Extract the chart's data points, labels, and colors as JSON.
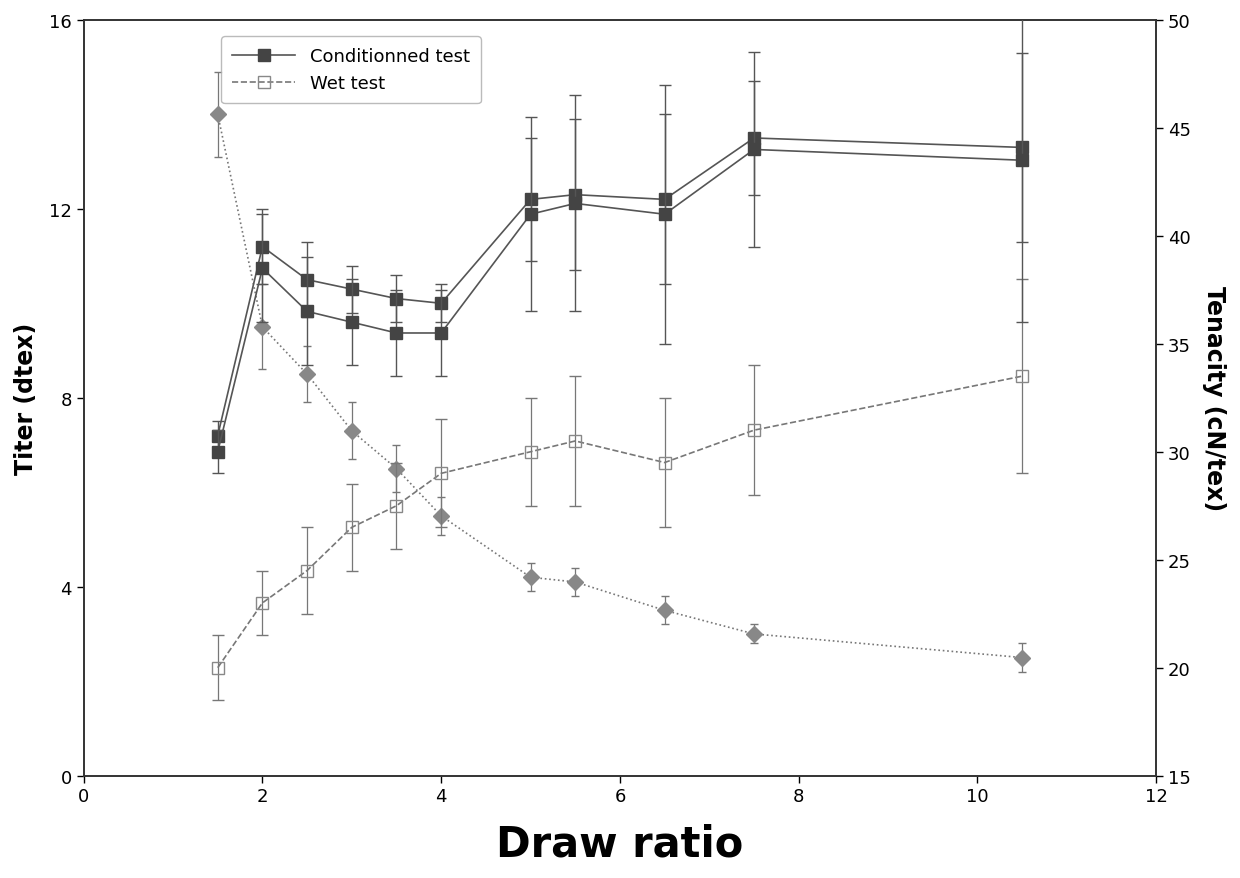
{
  "xlabel": "Draw ratio",
  "ylabel_left": "Titer (dtex)",
  "ylabel_right": "Tenacity (cN/tex)",
  "xlim": [
    0,
    12
  ],
  "ylim_left": [
    0,
    16
  ],
  "ylim_right": [
    15,
    50
  ],
  "xticks": [
    0,
    2,
    4,
    6,
    8,
    10,
    12
  ],
  "yticks_left": [
    0,
    4,
    8,
    12,
    16
  ],
  "yticks_right": [
    15,
    20,
    25,
    30,
    35,
    40,
    45,
    50
  ],
  "x": [
    1.5,
    2.0,
    2.5,
    3.0,
    3.5,
    4.0,
    5.0,
    5.5,
    6.5,
    7.5,
    10.5
  ],
  "cond_titer_y": [
    7.2,
    11.2,
    10.5,
    10.3,
    10.1,
    10.0,
    12.2,
    12.3,
    12.2,
    13.5,
    13.3
  ],
  "cond_titer_yerr": [
    0.3,
    0.8,
    0.8,
    0.5,
    0.5,
    0.4,
    1.3,
    1.6,
    1.8,
    1.2,
    2.0
  ],
  "wet_titer_y": [
    14.0,
    9.5,
    8.5,
    7.3,
    6.5,
    5.5,
    4.2,
    4.1,
    3.5,
    3.0,
    2.5
  ],
  "wet_titer_yerr": [
    0.9,
    0.9,
    0.6,
    0.6,
    0.5,
    0.4,
    0.3,
    0.3,
    0.3,
    0.2,
    0.3
  ],
  "cond_ten_y": [
    30.0,
    38.5,
    36.5,
    36.0,
    35.5,
    35.5,
    41.0,
    41.5,
    41.0,
    44.0,
    43.5
  ],
  "cond_ten_yerr": [
    1.0,
    2.5,
    2.5,
    2.0,
    2.0,
    2.0,
    4.5,
    5.0,
    6.0,
    4.5,
    7.5
  ],
  "wet_ten_y": [
    20.0,
    23.0,
    24.5,
    26.5,
    27.5,
    29.0,
    30.0,
    30.5,
    29.5,
    31.0,
    33.5
  ],
  "wet_ten_yerr": [
    1.5,
    1.5,
    2.0,
    2.0,
    2.0,
    2.5,
    2.5,
    3.0,
    3.0,
    3.0,
    4.5
  ],
  "legend_labels": [
    "Conditionned test",
    "Wet test"
  ],
  "bg_color": "#ffffff",
  "marker_color_dark": "#444444",
  "marker_color_diamond": "#888888",
  "line_color_solid": "#555555",
  "line_color_dotted": "#777777"
}
